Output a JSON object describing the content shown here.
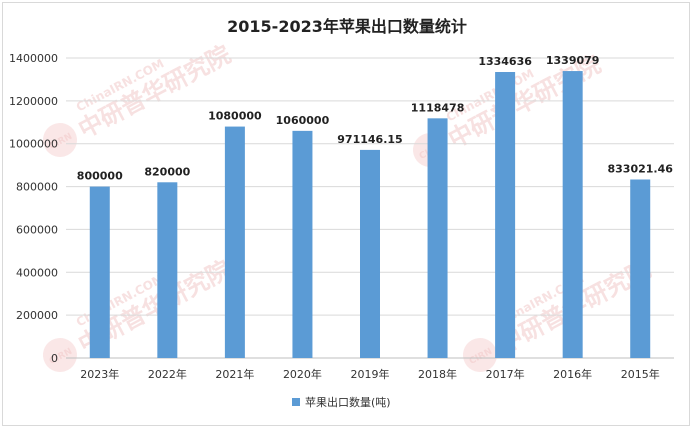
{
  "chart_data": {
    "type": "bar",
    "title": "2015-2023年苹果出口数量统计",
    "categories": [
      "2023年",
      "2022年",
      "2021年",
      "2020年",
      "2019年",
      "2018年",
      "2017年",
      "2016年",
      "2015年"
    ],
    "series": [
      {
        "name": "苹果出口数量(吨)",
        "values": [
          800000,
          820000,
          1080000,
          1060000,
          971146.15,
          1118478,
          1334636,
          1339079,
          833021.46
        ],
        "labels": [
          "800000",
          "820000",
          "1080000",
          "1060000",
          "971146.15",
          "1118478",
          "1334636",
          "1339079",
          "833021.46"
        ],
        "color": "#5b9bd5"
      }
    ],
    "y_ticks": [
      "0",
      "200000",
      "400000",
      "600000",
      "800000",
      "1000000",
      "1200000",
      "1400000"
    ],
    "ylim": [
      0,
      1400000
    ],
    "grid": true,
    "legend": "bottom"
  },
  "watermark": {
    "text": "ChinaIRN.COM",
    "brand": "中研普华研究院",
    "logo": "CIRN"
  }
}
